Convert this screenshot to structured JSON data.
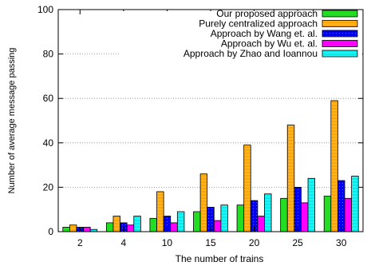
{
  "chart_data": {
    "type": "bar",
    "xlabel": "The number of trains",
    "ylabel": "Number of average message passing",
    "categories": [
      "2",
      "4",
      "10",
      "15",
      "20",
      "25",
      "30"
    ],
    "ylim": [
      0,
      100
    ],
    "yticks": [
      0,
      20,
      40,
      60,
      80,
      100
    ],
    "grid": "horizontal-dotted",
    "legend_position": "top-right",
    "series": [
      {
        "name": "Our proposed approach",
        "color": "#22dd22",
        "pattern": "solid",
        "values": [
          2,
          4,
          6,
          9,
          12,
          15,
          16
        ]
      },
      {
        "name": "Purely centralized approach",
        "color": "#ffa500",
        "pattern": "dashed",
        "values": [
          3,
          7,
          18,
          26,
          39,
          48,
          59
        ]
      },
      {
        "name": "Approach by Wang et. al.",
        "color": "#0000ee",
        "pattern": "dotted",
        "values": [
          2,
          4,
          7,
          11,
          14,
          20,
          23
        ]
      },
      {
        "name": "Approach by Wu et. al.",
        "color": "#ff00ff",
        "pattern": "solid",
        "values": [
          2,
          3,
          4,
          5,
          7,
          13,
          15
        ]
      },
      {
        "name": "Approach by Zhao and Ioannou",
        "color": "#00eeee",
        "pattern": "dashed",
        "values": [
          1,
          7,
          9,
          12,
          17,
          24,
          25
        ]
      }
    ]
  }
}
